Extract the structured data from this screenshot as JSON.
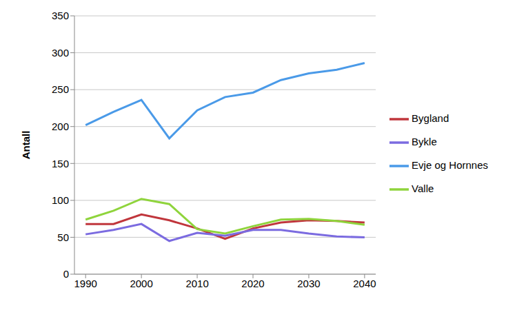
{
  "chart_data": {
    "type": "line",
    "y_label": "Antall",
    "x": [
      1990,
      1995,
      2000,
      2005,
      2010,
      2015,
      2020,
      2025,
      2030,
      2035,
      2040
    ],
    "xlim": [
      1988,
      2042
    ],
    "xticks": [
      1990,
      2000,
      2010,
      2020,
      2030,
      2040
    ],
    "ylim": [
      0,
      350
    ],
    "yticks": [
      0,
      50,
      100,
      150,
      200,
      250,
      300,
      350
    ],
    "grid": true,
    "legend": "right",
    "series": [
      {
        "name": "Evje og Hornnes",
        "color": "#4a9ae8",
        "values": [
          202,
          220,
          236,
          184,
          222,
          240,
          246,
          263,
          272,
          277,
          286
        ]
      },
      {
        "name": "Bygland",
        "color": "#c0363c",
        "values": [
          68,
          68,
          81,
          73,
          62,
          48,
          62,
          70,
          73,
          72,
          70
        ]
      },
      {
        "name": "Valle",
        "color": "#8fd43c",
        "values": [
          74,
          86,
          102,
          95,
          61,
          55,
          65,
          74,
          75,
          72,
          67
        ]
      },
      {
        "name": "Bykle",
        "color": "#7b6be0",
        "values": [
          54,
          60,
          68,
          45,
          56,
          52,
          60,
          60,
          55,
          51,
          50
        ]
      }
    ]
  }
}
